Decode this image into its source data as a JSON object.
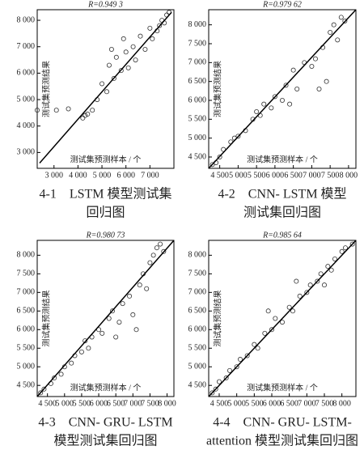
{
  "chart_data": [
    {
      "type": "scatter",
      "title": "R=0.949 3",
      "ylabel": "测试集预测结果",
      "xlabel": "测试集预测样本 / 个",
      "caption": [
        "4-1　LSTM 模型测试集",
        "回归图"
      ],
      "xlim": [
        2300,
        8000
      ],
      "ylim": [
        2400,
        8400
      ],
      "xticks": [
        {
          "value": 3000,
          "label": "3 000"
        },
        {
          "value": 4000,
          "label": "4 000"
        },
        {
          "value": 5000,
          "label": "5 000"
        },
        {
          "value": 6000,
          "label": "6 000"
        },
        {
          "value": 7000,
          "label": "7 000"
        }
      ],
      "yticks": [
        {
          "value": 3000,
          "label": "3 000"
        },
        {
          "value": 4000,
          "label": "4 000"
        },
        {
          "value": 5000,
          "label": "5 000"
        },
        {
          "value": 6000,
          "label": "6 000"
        },
        {
          "value": 7000,
          "label": "7 000"
        },
        {
          "value": 8000,
          "label": "8 000"
        }
      ],
      "series": [
        {
          "type": "scatter",
          "color": "#333333",
          "x": [
            2300,
            3100,
            3600,
            4200,
            4300,
            4400,
            4600,
            4800,
            5000,
            5200,
            5300,
            5500,
            5600,
            5800,
            6000,
            6100,
            6300,
            6400,
            6600,
            6800,
            7000,
            7100,
            7300,
            7400,
            7500,
            7600,
            7700,
            7800,
            5400,
            5900
          ],
          "values": [
            4600,
            4600,
            4650,
            4300,
            4400,
            4450,
            4600,
            5000,
            5600,
            5300,
            6300,
            5800,
            6600,
            6100,
            6800,
            6200,
            7000,
            6500,
            7400,
            6900,
            7700,
            7300,
            7600,
            7800,
            8000,
            7900,
            8200,
            8300,
            6900,
            7300
          ]
        },
        {
          "type": "line",
          "color": "#000000",
          "x": [
            2400,
            7900
          ],
          "values": [
            2600,
            8300
          ]
        }
      ]
    },
    {
      "type": "scatter",
      "title": "R=0.979 62",
      "ylabel": "测试集预测结果",
      "xlabel": "测试集预测样本 / 个",
      "caption": [
        "4-2　CNN- LSTM 模型",
        "测试集回归图"
      ],
      "xlim": [
        4200,
        8200
      ],
      "ylim": [
        4200,
        8400
      ],
      "xticks": [
        {
          "value": 4500,
          "label": "4 500"
        },
        {
          "value": 5000,
          "label": "5 000"
        },
        {
          "value": 5500,
          "label": "5 500"
        },
        {
          "value": 6000,
          "label": "6 000"
        },
        {
          "value": 6500,
          "label": "6 500"
        },
        {
          "value": 7000,
          "label": "7 000"
        },
        {
          "value": 7500,
          "label": "7 500"
        },
        {
          "value": 8000,
          "label": "8 000"
        }
      ],
      "yticks": [
        {
          "value": 4500,
          "label": "4 500"
        },
        {
          "value": 5000,
          "label": "5 000"
        },
        {
          "value": 5500,
          "label": "5 500"
        },
        {
          "value": 6000,
          "label": "6 000"
        },
        {
          "value": 6500,
          "label": "6 500"
        },
        {
          "value": 7000,
          "label": "7 000"
        },
        {
          "value": 7500,
          "label": "7 500"
        },
        {
          "value": 8000,
          "label": "8 000"
        }
      ],
      "series": [
        {
          "type": "scatter",
          "color": "#333333",
          "x": [
            4300,
            4400,
            4500,
            4600,
            4800,
            4900,
            5000,
            5200,
            5400,
            5500,
            5700,
            5900,
            6000,
            6200,
            6300,
            6500,
            6600,
            6800,
            7000,
            7100,
            7300,
            7400,
            7500,
            7600,
            7700,
            7800,
            7900,
            5600,
            6400,
            7200
          ],
          "values": [
            4300,
            4350,
            4500,
            4700,
            4900,
            5000,
            5050,
            5200,
            5500,
            5700,
            5900,
            5800,
            6100,
            6000,
            6400,
            6800,
            6300,
            7000,
            6900,
            7100,
            7400,
            6500,
            7800,
            8000,
            7600,
            8200,
            8100,
            5600,
            5900,
            6300
          ]
        },
        {
          "type": "line",
          "color": "#000000",
          "x": [
            4200,
            8200
          ],
          "values": [
            4200,
            8400
          ]
        }
      ]
    },
    {
      "type": "scatter",
      "title": "R=0.980 73",
      "ylabel": "测试集预测结果",
      "xlabel": "测试集预测样本 / 个",
      "caption": [
        "4-3　CNN- GRU- LSTM",
        "模型测试集回归图"
      ],
      "xlim": [
        4200,
        8200
      ],
      "ylim": [
        4200,
        8400
      ],
      "xticks": [
        {
          "value": 4500,
          "label": "4 500"
        },
        {
          "value": 5000,
          "label": "5 000"
        },
        {
          "value": 5500,
          "label": "5 500"
        },
        {
          "value": 6000,
          "label": "6 000"
        },
        {
          "value": 6500,
          "label": "6 500"
        },
        {
          "value": 7000,
          "label": "7 000"
        },
        {
          "value": 7500,
          "label": "7 500"
        },
        {
          "value": 8000,
          "label": "8 000"
        }
      ],
      "yticks": [
        {
          "value": 4500,
          "label": "4 500"
        },
        {
          "value": 5000,
          "label": "5 000"
        },
        {
          "value": 5500,
          "label": "5 500"
        },
        {
          "value": 6000,
          "label": "6 000"
        },
        {
          "value": 6500,
          "label": "6 500"
        },
        {
          "value": 7000,
          "label": "7 000"
        },
        {
          "value": 7500,
          "label": "7 500"
        },
        {
          "value": 8000,
          "label": "8 000"
        }
      ],
      "series": [
        {
          "type": "scatter",
          "color": "#333333",
          "x": [
            4300,
            4400,
            4600,
            4700,
            4900,
            5000,
            5200,
            5300,
            5500,
            5600,
            5800,
            6000,
            6100,
            6300,
            6400,
            6600,
            6700,
            6900,
            7000,
            7200,
            7300,
            7400,
            7500,
            7600,
            7700,
            7800,
            7900,
            5700,
            6500,
            7100
          ],
          "values": [
            4300,
            4400,
            4550,
            4700,
            4800,
            5000,
            5100,
            5300,
            5400,
            5700,
            5800,
            6000,
            5900,
            6300,
            6500,
            6200,
            6700,
            6900,
            6400,
            7200,
            7500,
            7100,
            7800,
            8000,
            8200,
            8300,
            8100,
            5500,
            5800,
            6000
          ]
        },
        {
          "type": "line",
          "color": "#000000",
          "x": [
            4200,
            8200
          ],
          "values": [
            4200,
            8400
          ]
        }
      ]
    },
    {
      "type": "scatter",
      "title": "R=0.985 64",
      "ylabel": "测试集预测结果",
      "xlabel": "测试集预测样本 / 个",
      "caption": [
        "4-4　CNN- GRU- LSTM-",
        "attention 模型测试集回归图"
      ],
      "xlim": [
        4200,
        8400
      ],
      "ylim": [
        4200,
        8400
      ],
      "xticks": [
        {
          "value": 4500,
          "label": "4 500"
        },
        {
          "value": 5000,
          "label": "5 000"
        },
        {
          "value": 5500,
          "label": "5 500"
        },
        {
          "value": 6000,
          "label": "6 000"
        },
        {
          "value": 6500,
          "label": "6 500"
        },
        {
          "value": 7000,
          "label": "7 000"
        },
        {
          "value": 7500,
          "label": "7 500"
        },
        {
          "value": 8000,
          "label": "8 000"
        }
      ],
      "yticks": [
        {
          "value": 4500,
          "label": "4 500"
        },
        {
          "value": 5000,
          "label": "5 000"
        },
        {
          "value": 5500,
          "label": "5 500"
        },
        {
          "value": 6000,
          "label": "6 000"
        },
        {
          "value": 6500,
          "label": "6 500"
        },
        {
          "value": 7000,
          "label": "7 000"
        },
        {
          "value": 7500,
          "label": "7 500"
        },
        {
          "value": 8000,
          "label": "8 000"
        }
      ],
      "series": [
        {
          "type": "scatter",
          "color": "#333333",
          "x": [
            4300,
            4400,
            4500,
            4700,
            4800,
            5000,
            5100,
            5300,
            5500,
            5600,
            5800,
            6000,
            6100,
            6300,
            6500,
            6600,
            6800,
            7000,
            7100,
            7300,
            7400,
            7600,
            7700,
            7800,
            8000,
            8100,
            8300,
            5900,
            6700,
            7500
          ],
          "values": [
            4300,
            4400,
            4600,
            4700,
            4900,
            5000,
            5200,
            5300,
            5600,
            5500,
            5900,
            6000,
            6300,
            6200,
            6600,
            6500,
            6900,
            7000,
            7200,
            7300,
            7500,
            7700,
            7600,
            7900,
            8100,
            8200,
            8300,
            6500,
            7300,
            7200
          ]
        },
        {
          "type": "line",
          "color": "#000000",
          "x": [
            4200,
            8400
          ],
          "values": [
            4200,
            8400
          ]
        }
      ]
    }
  ]
}
